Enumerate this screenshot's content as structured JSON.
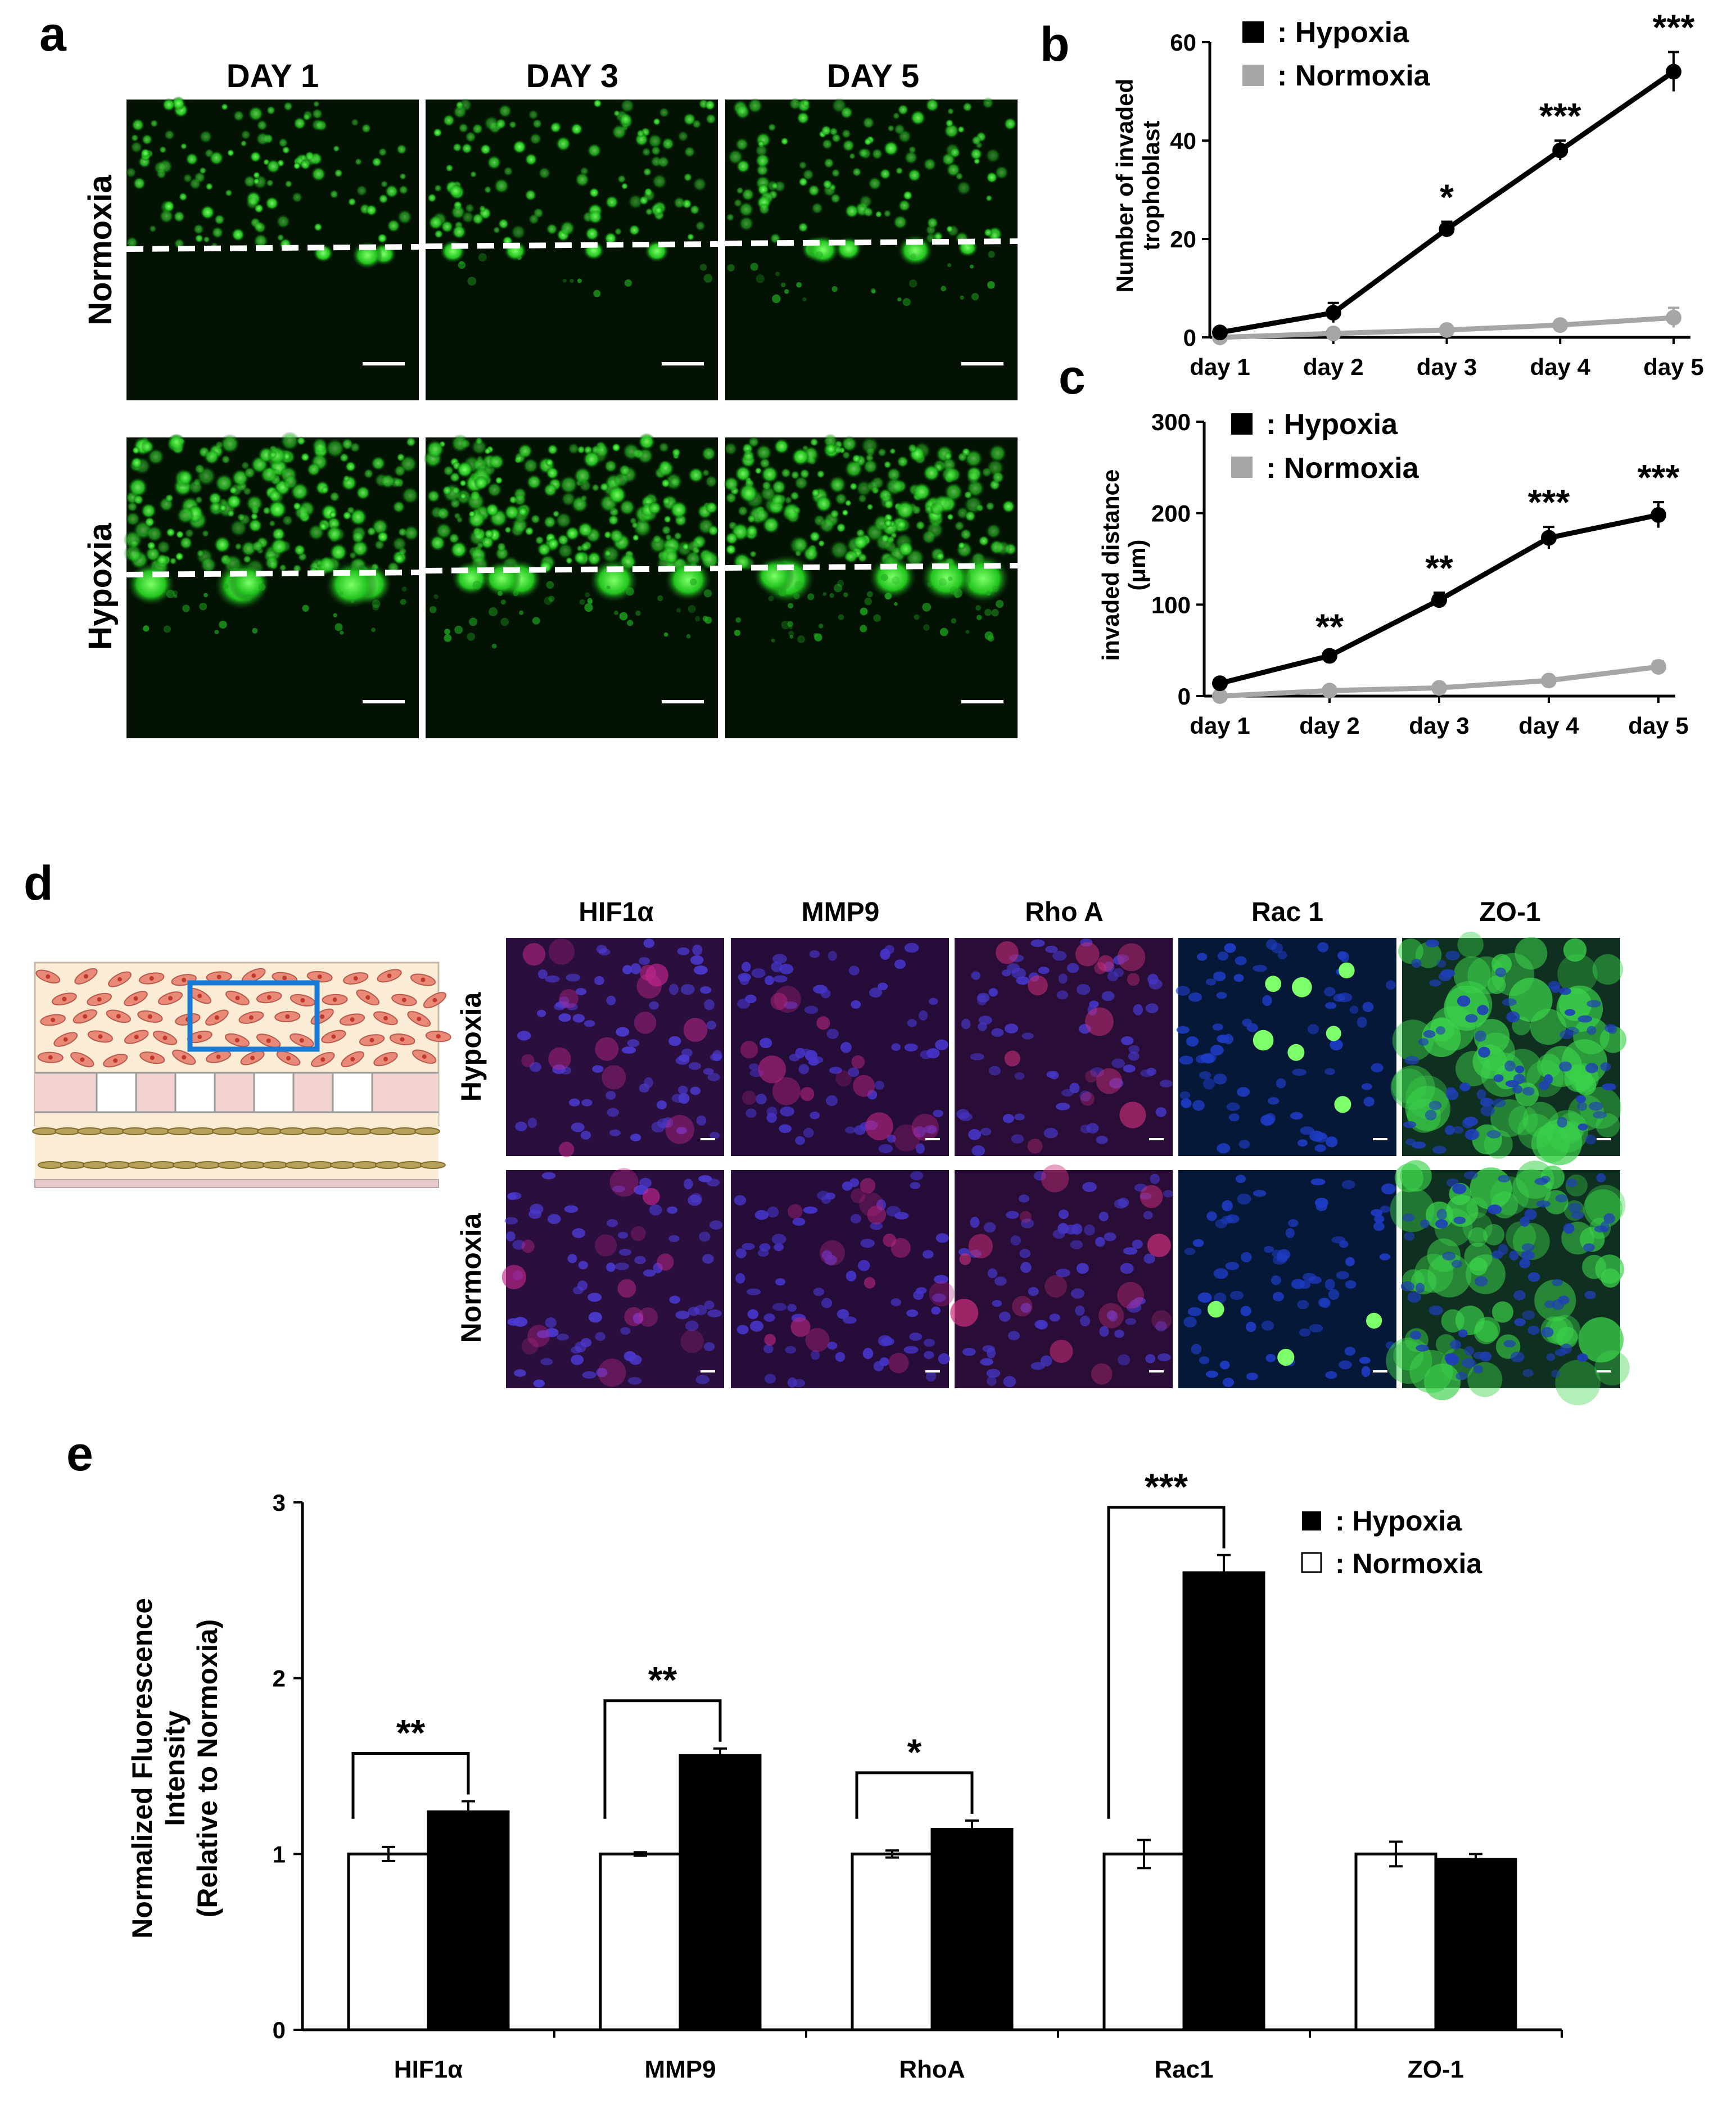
{
  "panels": {
    "a": "a",
    "b": "b",
    "c": "c",
    "d": "d",
    "e": "e"
  },
  "panel_a": {
    "columns": [
      "DAY 1",
      "DAY 3",
      "DAY 5"
    ],
    "rows": [
      "Normoxia",
      "Hypoxia"
    ],
    "colors": {
      "signal": "#3be03b",
      "background": "#041204",
      "dashed_line": "#ffffff"
    }
  },
  "panel_d": {
    "columns": [
      "HIF1α",
      "MMP9",
      "Rho A",
      "Rac 1",
      "ZO-1"
    ],
    "rows": [
      "Hypoxia",
      "Normoxia"
    ],
    "schematic": {
      "highlight_color": "#1a7bd6",
      "cell_color": "#e98a78",
      "channel_color": "#f3d3d0"
    }
  },
  "chart_data": [
    {
      "id": "b",
      "type": "line",
      "title": "",
      "xlabel": "",
      "ylabel": "Number of invaded trophoblast",
      "ylabel_lines": [
        "Number of invaded",
        "trophoblast"
      ],
      "categories": [
        "day 1",
        "day 2",
        "day 3",
        "day 4",
        "day 5"
      ],
      "ylim": [
        0,
        60
      ],
      "yticks": [
        0,
        20,
        40,
        60
      ],
      "series": [
        {
          "name": ": Hypoxia",
          "color": "#000000",
          "values": [
            1,
            5,
            22,
            38,
            54
          ],
          "errors": [
            0.5,
            2,
            1.5,
            2,
            4
          ]
        },
        {
          "name": ": Normoxia",
          "color": "#a6a6a6",
          "values": [
            0,
            0.8,
            1.5,
            2.5,
            4
          ],
          "errors": [
            0.3,
            0.4,
            0.6,
            0.8,
            2
          ]
        }
      ],
      "significance": [
        "",
        "",
        "*",
        "***",
        "***"
      ],
      "legend_position": "top-left"
    },
    {
      "id": "c",
      "type": "line",
      "title": "",
      "xlabel": "",
      "ylabel": "invaded distance (μm)",
      "ylabel_lines": [
        "invaded distance",
        "(μm)"
      ],
      "categories": [
        "day 1",
        "day 2",
        "day 3",
        "day 4",
        "day 5"
      ],
      "ylim": [
        0,
        300
      ],
      "yticks": [
        0,
        100,
        200,
        300
      ],
      "series": [
        {
          "name": ": Hypoxia",
          "color": "#000000",
          "values": [
            14,
            44,
            105,
            173,
            198
          ],
          "errors": [
            3,
            5,
            8,
            12,
            14
          ]
        },
        {
          "name": ": Normoxia",
          "color": "#a6a6a6",
          "values": [
            0,
            6,
            9,
            17,
            32
          ],
          "errors": [
            2,
            2,
            3,
            4,
            6
          ]
        }
      ],
      "significance": [
        "",
        "**",
        "**",
        "***",
        "***"
      ],
      "legend_position": "top-left"
    },
    {
      "id": "e",
      "type": "bar",
      "title": "",
      "xlabel": "",
      "ylabel": "Normalized Fluorescence Intensity (Relative to Normoxia)",
      "ylabel_lines": [
        "Normalized Fluorescence",
        "Intensity",
        "(Relative to Normoxia)"
      ],
      "categories": [
        "HIF1α",
        "MMP9",
        "RhoA",
        "Rac1",
        "ZO-1"
      ],
      "ylim": [
        0,
        3
      ],
      "yticks": [
        0,
        1,
        2,
        3
      ],
      "series": [
        {
          "name": ": Normoxia",
          "color": "#ffffff",
          "values": [
            1.0,
            1.0,
            1.0,
            1.0,
            1.0
          ],
          "errors": [
            0.04,
            0.01,
            0.02,
            0.08,
            0.07
          ]
        },
        {
          "name": ": Hypoxia",
          "color": "#000000",
          "values": [
            1.24,
            1.56,
            1.14,
            2.6,
            0.97
          ],
          "errors": [
            0.06,
            0.04,
            0.05,
            0.1,
            0.03
          ]
        }
      ],
      "significance": [
        "**",
        "**",
        "*",
        "***",
        ""
      ],
      "legend_position": "top-right"
    }
  ]
}
